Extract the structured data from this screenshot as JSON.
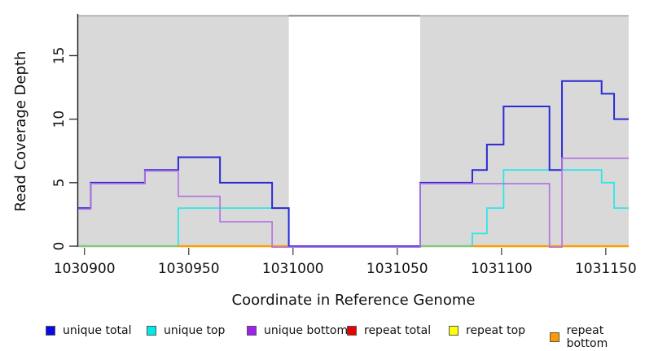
{
  "figure": {
    "x_axis_label": "Coordinate in Reference Genome",
    "y_axis_label": "Read Coverage Depth"
  },
  "chart_data": {
    "type": "line",
    "step": true,
    "title": "",
    "xlabel": "Coordinate in Reference Genome",
    "ylabel": "Read Coverage Depth",
    "xlim": [
      1030897,
      1031161
    ],
    "ylim": [
      0,
      18.1
    ],
    "x_ticks": [
      1030900,
      1030950,
      1031000,
      1031050,
      1031100,
      1031150
    ],
    "y_ticks": [
      0,
      5,
      10,
      15
    ],
    "grid": false,
    "legend_position": "bottom",
    "background_regions": [
      {
        "x0": 1030897,
        "x1": 1030998,
        "color": "#d9d9d9"
      },
      {
        "x0": 1031061,
        "x1": 1031161,
        "color": "#d9d9d9"
      }
    ],
    "gap_region": {
      "x0": 1030998,
      "x1": 1031061
    },
    "series": [
      {
        "name": "repeat total",
        "color": "#cc0000",
        "steps": [
          [
            1030897,
            0
          ]
        ]
      },
      {
        "name": "repeat top",
        "color": "#e6e600",
        "steps": [
          [
            1030897,
            0
          ]
        ]
      },
      {
        "name": "repeat bottom",
        "color": "#ff9d00",
        "steps": [
          [
            1030897,
            0
          ]
        ]
      },
      {
        "name": "unique top",
        "color": "#2ee6e6",
        "steps": [
          [
            1030897,
            0
          ],
          [
            1030945,
            3
          ],
          [
            1030998,
            0
          ],
          [
            1031086,
            1
          ],
          [
            1031093,
            3
          ],
          [
            1031101,
            6
          ],
          [
            1031148,
            5
          ],
          [
            1031154,
            3
          ]
        ]
      },
      {
        "name": "unique total",
        "color": "#2b2bd5",
        "steps": [
          [
            1030897,
            3
          ],
          [
            1030903,
            5
          ],
          [
            1030929,
            6
          ],
          [
            1030945,
            7
          ],
          [
            1030965,
            5
          ],
          [
            1030990,
            3
          ],
          [
            1030998,
            0
          ],
          [
            1031061,
            5
          ],
          [
            1031086,
            6
          ],
          [
            1031093,
            8
          ],
          [
            1031101,
            11
          ],
          [
            1031123,
            6
          ],
          [
            1031129,
            13
          ],
          [
            1031148,
            12
          ],
          [
            1031154,
            10
          ]
        ]
      },
      {
        "name": "unique bottom",
        "color": "#b476e2",
        "steps": [
          [
            1030897,
            3
          ],
          [
            1030903,
            5
          ],
          [
            1030929,
            6
          ],
          [
            1030945,
            4
          ],
          [
            1030965,
            2
          ],
          [
            1030990,
            0
          ],
          [
            1031061,
            5
          ],
          [
            1031123,
            0
          ],
          [
            1031129,
            7
          ]
        ]
      }
    ],
    "baseline_segments": [
      {
        "x0": 1030897,
        "x1": 1030945,
        "color": "#7fc87f"
      },
      {
        "x0": 1030945,
        "x1": 1030998,
        "color": "#ff9d00"
      },
      {
        "x0": 1031061,
        "x1": 1031086,
        "color": "#7fc87f"
      },
      {
        "x0": 1031086,
        "x1": 1031161,
        "color": "#ff9d00"
      }
    ]
  },
  "legend": {
    "items": [
      {
        "label": "unique total",
        "color": "#0a0ae6"
      },
      {
        "label": "unique top",
        "color": "#00e8e8"
      },
      {
        "label": "unique bottom",
        "color": "#a020f0"
      },
      {
        "label": "repeat total",
        "color": "#e60000"
      },
      {
        "label": "repeat top",
        "color": "#ffff00"
      },
      {
        "label": "repeat bottom",
        "color": "#ff9900"
      }
    ]
  }
}
